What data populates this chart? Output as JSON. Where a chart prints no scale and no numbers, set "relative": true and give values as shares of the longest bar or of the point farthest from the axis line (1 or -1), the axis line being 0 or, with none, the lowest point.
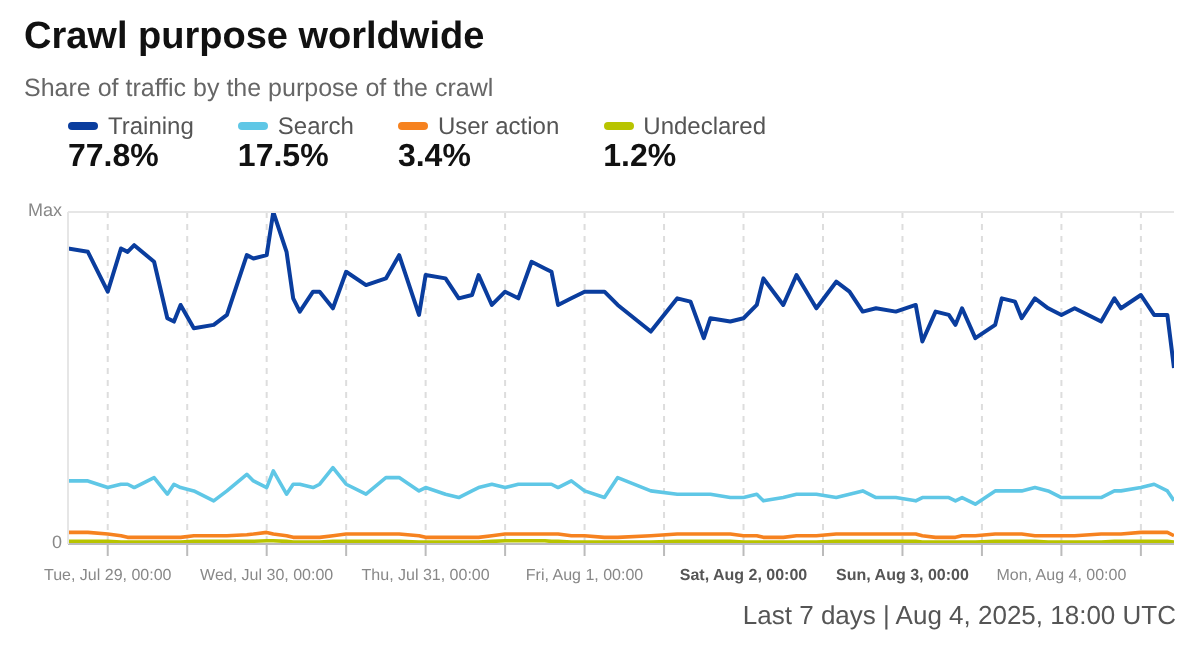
{
  "chart_data": {
    "type": "line",
    "title": "Crawl purpose worldwide",
    "subtitle": "Share of traffic by the purpose of the crawl",
    "annotations": [
      "77.8%",
      "17.5%",
      "3.4%",
      "1.2%",
      "Max",
      "0",
      "Last 7 days | Aug 4, 2025, 18:00 UTC"
    ],
    "relative": true,
    "x": [
      "2025-07-28T18:00",
      "2025-07-28T21:00",
      "2025-07-29T00:00",
      "2025-07-29T02:00",
      "2025-07-29T03:00",
      "2025-07-29T04:00",
      "2025-07-29T07:00",
      "2025-07-29T09:00",
      "2025-07-29T10:00",
      "2025-07-29T11:00",
      "2025-07-29T13:00",
      "2025-07-29T16:00",
      "2025-07-29T18:00",
      "2025-07-29T21:00",
      "2025-07-29T22:00",
      "2025-07-30T00:00",
      "2025-07-30T01:00",
      "2025-07-30T03:00",
      "2025-07-30T04:00",
      "2025-07-30T05:00",
      "2025-07-30T07:00",
      "2025-07-30T08:00",
      "2025-07-30T10:00",
      "2025-07-30T12:00",
      "2025-07-30T15:00",
      "2025-07-30T18:00",
      "2025-07-30T20:00",
      "2025-07-30T23:00",
      "2025-07-31T00:00",
      "2025-07-31T03:00",
      "2025-07-31T05:00",
      "2025-07-31T07:00",
      "2025-07-31T08:00",
      "2025-07-31T10:00",
      "2025-07-31T12:00",
      "2025-07-31T14:00",
      "2025-07-31T16:00",
      "2025-07-31T18:00",
      "2025-07-31T19:00",
      "2025-07-31T20:00",
      "2025-07-31T22:00",
      "2025-08-01T00:00",
      "2025-08-01T03:00",
      "2025-08-01T05:00",
      "2025-08-01T10:00",
      "2025-08-01T14:00",
      "2025-08-01T16:00",
      "2025-08-01T18:00",
      "2025-08-01T19:00",
      "2025-08-01T22:00",
      "2025-08-02T00:00",
      "2025-08-02T02:00",
      "2025-08-02T03:00",
      "2025-08-02T06:00",
      "2025-08-02T08:00",
      "2025-08-02T11:00",
      "2025-08-02T14:00",
      "2025-08-02T16:00",
      "2025-08-02T18:00",
      "2025-08-02T20:00",
      "2025-08-02T23:00",
      "2025-08-03T02:00",
      "2025-08-03T03:00",
      "2025-08-03T05:00",
      "2025-08-03T07:00",
      "2025-08-03T08:00",
      "2025-08-03T09:00",
      "2025-08-03T11:00",
      "2025-08-03T14:00",
      "2025-08-03T15:00",
      "2025-08-03T17:00",
      "2025-08-03T18:00",
      "2025-08-03T20:00",
      "2025-08-03T22:00",
      "2025-08-04T00:00",
      "2025-08-04T02:00",
      "2025-08-04T06:00",
      "2025-08-04T08:00",
      "2025-08-04T09:00",
      "2025-08-04T12:00",
      "2025-08-04T14:00",
      "2025-08-04T16:00",
      "2025-08-04T17:00"
    ],
    "series": [
      {
        "name": "Training",
        "color": "#0a3d9e",
        "values": [
          0.89,
          0.88,
          0.76,
          0.89,
          0.88,
          0.9,
          0.85,
          0.68,
          0.67,
          0.72,
          0.65,
          0.66,
          0.69,
          0.87,
          0.86,
          0.87,
          1.0,
          0.88,
          0.74,
          0.7,
          0.76,
          0.76,
          0.71,
          0.82,
          0.78,
          0.8,
          0.87,
          0.69,
          0.81,
          0.8,
          0.74,
          0.75,
          0.81,
          0.72,
          0.76,
          0.74,
          0.85,
          0.83,
          0.82,
          0.72,
          0.74,
          0.76,
          0.76,
          0.72,
          0.64,
          0.74,
          0.73,
          0.62,
          0.68,
          0.67,
          0.68,
          0.72,
          0.8,
          0.72,
          0.81,
          0.71,
          0.79,
          0.76,
          0.7,
          0.71,
          0.7,
          0.72,
          0.61,
          0.7,
          0.69,
          0.66,
          0.71,
          0.62,
          0.66,
          0.74,
          0.73,
          0.68,
          0.74,
          0.71,
          0.69,
          0.71,
          0.67,
          0.74,
          0.71,
          0.75,
          0.69,
          0.69,
          0.53
        ]
      },
      {
        "name": "Search",
        "color": "#5fc7e6",
        "values": [
          0.19,
          0.19,
          0.17,
          0.18,
          0.18,
          0.17,
          0.2,
          0.15,
          0.18,
          0.17,
          0.16,
          0.13,
          0.16,
          0.21,
          0.19,
          0.17,
          0.22,
          0.15,
          0.18,
          0.18,
          0.17,
          0.18,
          0.23,
          0.18,
          0.15,
          0.2,
          0.2,
          0.16,
          0.17,
          0.15,
          0.14,
          0.16,
          0.17,
          0.18,
          0.17,
          0.18,
          0.18,
          0.18,
          0.18,
          0.17,
          0.19,
          0.16,
          0.14,
          0.2,
          0.16,
          0.15,
          0.15,
          0.15,
          0.15,
          0.14,
          0.14,
          0.15,
          0.13,
          0.14,
          0.15,
          0.15,
          0.14,
          0.15,
          0.16,
          0.14,
          0.14,
          0.13,
          0.14,
          0.14,
          0.14,
          0.13,
          0.14,
          0.12,
          0.16,
          0.16,
          0.16,
          0.16,
          0.17,
          0.16,
          0.14,
          0.14,
          0.14,
          0.16,
          0.16,
          0.17,
          0.18,
          0.16,
          0.13
        ]
      },
      {
        "name": "User action",
        "color": "#f6821f",
        "values": [
          0.035,
          0.035,
          0.03,
          0.025,
          0.02,
          0.02,
          0.02,
          0.02,
          0.02,
          0.02,
          0.025,
          0.025,
          0.025,
          0.028,
          0.03,
          0.035,
          0.03,
          0.025,
          0.02,
          0.02,
          0.02,
          0.02,
          0.025,
          0.03,
          0.03,
          0.03,
          0.03,
          0.025,
          0.02,
          0.02,
          0.02,
          0.02,
          0.02,
          0.025,
          0.03,
          0.03,
          0.03,
          0.03,
          0.03,
          0.03,
          0.025,
          0.025,
          0.02,
          0.02,
          0.025,
          0.03,
          0.03,
          0.03,
          0.03,
          0.03,
          0.025,
          0.025,
          0.02,
          0.02,
          0.025,
          0.025,
          0.03,
          0.03,
          0.03,
          0.03,
          0.03,
          0.03,
          0.025,
          0.02,
          0.02,
          0.02,
          0.025,
          0.025,
          0.03,
          0.03,
          0.03,
          0.03,
          0.025,
          0.025,
          0.025,
          0.025,
          0.03,
          0.03,
          0.03,
          0.035,
          0.035,
          0.035,
          0.025
        ]
      },
      {
        "name": "Undeclared",
        "color": "#b8c400",
        "values": [
          0.008,
          0.008,
          0.008,
          0.006,
          0.006,
          0.006,
          0.006,
          0.006,
          0.006,
          0.006,
          0.008,
          0.008,
          0.008,
          0.008,
          0.008,
          0.01,
          0.01,
          0.008,
          0.006,
          0.006,
          0.006,
          0.006,
          0.008,
          0.008,
          0.008,
          0.008,
          0.008,
          0.006,
          0.006,
          0.006,
          0.006,
          0.006,
          0.006,
          0.008,
          0.01,
          0.01,
          0.01,
          0.01,
          0.008,
          0.008,
          0.006,
          0.006,
          0.006,
          0.006,
          0.006,
          0.008,
          0.008,
          0.008,
          0.008,
          0.008,
          0.006,
          0.006,
          0.006,
          0.006,
          0.006,
          0.006,
          0.008,
          0.008,
          0.008,
          0.008,
          0.008,
          0.008,
          0.006,
          0.006,
          0.006,
          0.006,
          0.006,
          0.006,
          0.008,
          0.008,
          0.008,
          0.008,
          0.008,
          0.006,
          0.006,
          0.006,
          0.006,
          0.008,
          0.008,
          0.008,
          0.008,
          0.008,
          0.006
        ]
      }
    ],
    "xlim": [
      "2025-07-28T18:00",
      "2025-08-04T17:00"
    ],
    "xticks": [
      {
        "value": "2025-07-29T00:00",
        "label": "Tue, Jul 29, 00:00"
      },
      {
        "value": "2025-07-29T12:00",
        "label": null
      },
      {
        "value": "2025-07-30T00:00",
        "label": "Wed, Jul 30, 00:00"
      },
      {
        "value": "2025-07-30T12:00",
        "label": null
      },
      {
        "value": "2025-07-31T00:00",
        "label": "Thu, Jul 31, 00:00"
      },
      {
        "value": "2025-07-31T12:00",
        "label": null
      },
      {
        "value": "2025-08-01T00:00",
        "label": "Fri, Aug 1, 00:00"
      },
      {
        "value": "2025-08-01T12:00",
        "label": null
      },
      {
        "value": "2025-08-02T00:00",
        "label": "Sat, Aug 2, 00:00"
      },
      {
        "value": "2025-08-02T12:00",
        "label": null
      },
      {
        "value": "2025-08-03T00:00",
        "label": "Sun, Aug 3, 00:00"
      },
      {
        "value": "2025-08-03T12:00",
        "label": null
      },
      {
        "value": "2025-08-04T00:00",
        "label": "Mon, Aug 4, 00:00"
      },
      {
        "value": "2025-08-04T12:00",
        "label": null
      }
    ],
    "grid": "x",
    "legend": "top left",
    "marker": "none",
    "line_style": "solid"
  }
}
